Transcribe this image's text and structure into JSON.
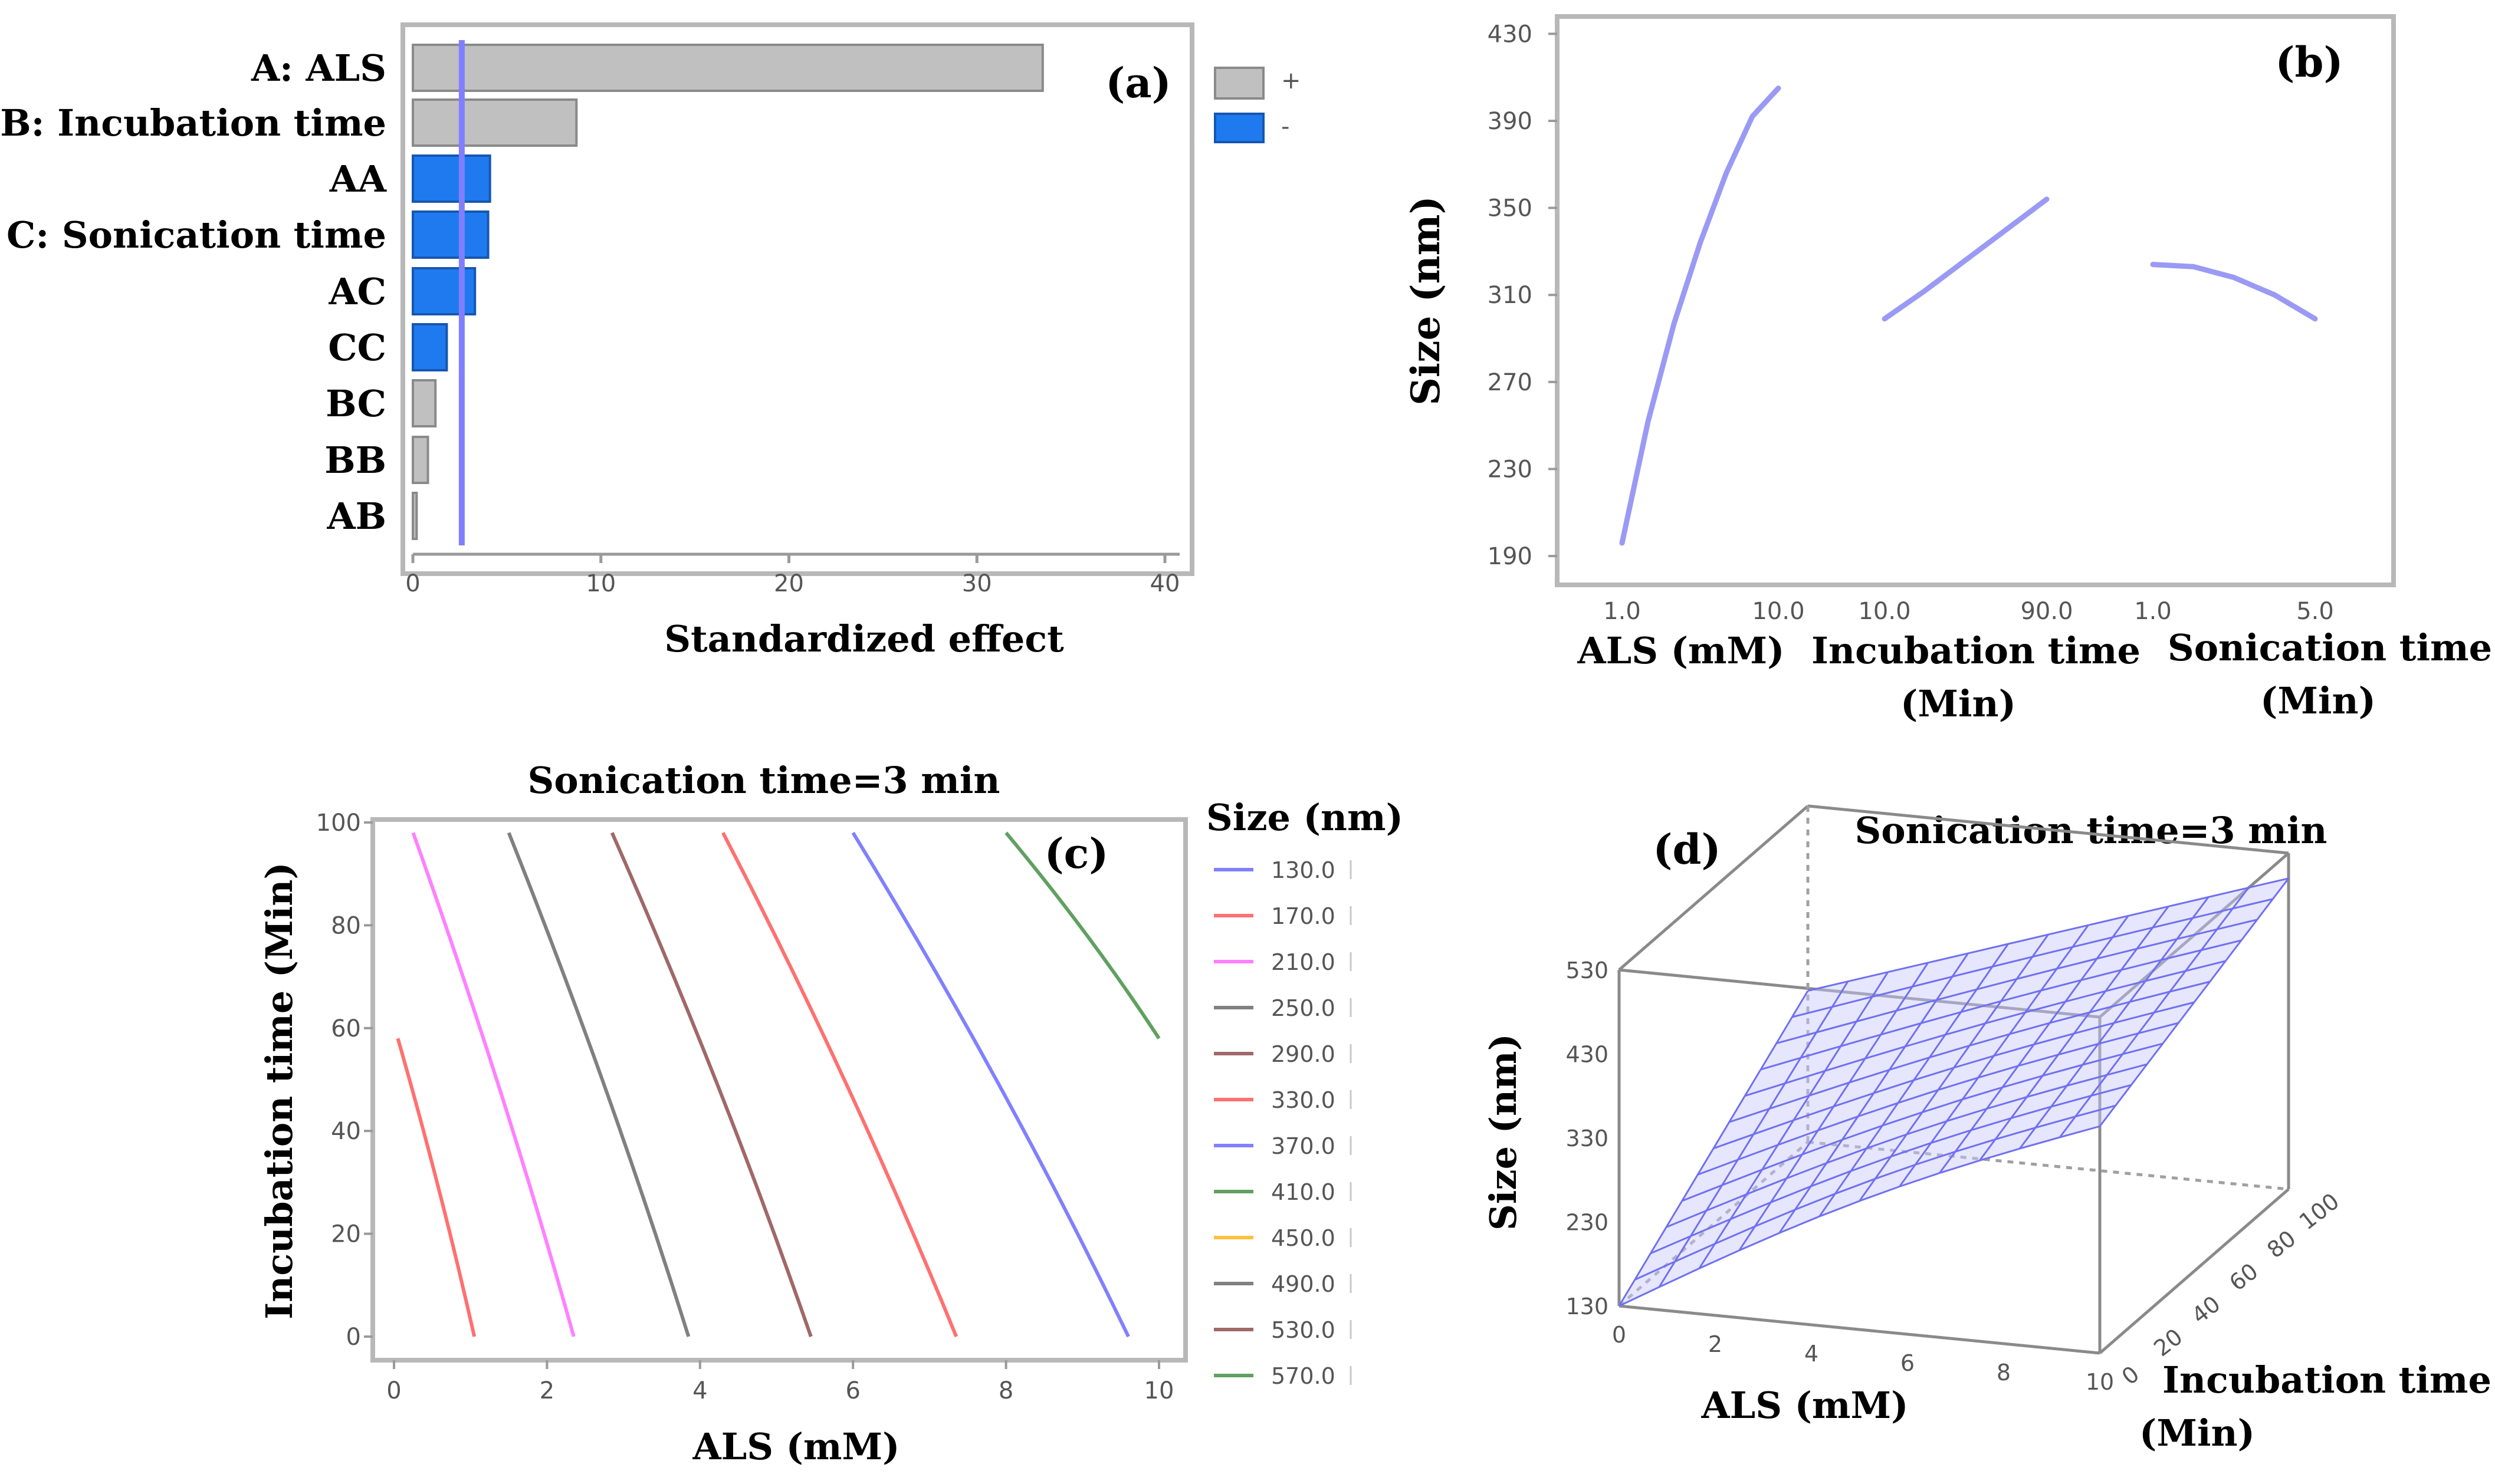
{
  "chart_data": [
    {
      "id": "a",
      "type": "bar",
      "panel_label": "(a)",
      "orientation": "horizontal",
      "categories": [
        "A: ALS",
        "B: Incubation time",
        "AA",
        "C: Sonication time",
        "AC",
        "CC",
        "BC",
        "BB",
        "AB"
      ],
      "values": [
        33.5,
        8.7,
        4.1,
        4.0,
        3.3,
        1.8,
        1.2,
        0.8,
        0.2
      ],
      "signs": [
        "+",
        "+",
        "-",
        "-",
        "-",
        "-",
        "+",
        "+",
        "+"
      ],
      "xlabel": "Standardized effect",
      "xlim": [
        0,
        40
      ],
      "xticks": [
        0,
        10,
        20,
        30,
        40
      ],
      "reference_line": 2.6,
      "legend": [
        {
          "label": "+",
          "color": "#c0c0c0"
        },
        {
          "label": "-",
          "color": "#1f7af0"
        }
      ],
      "colors": {
        "positive": "#c0c0c0",
        "negative": "#1f7af0",
        "reference": "#7f7fff"
      }
    },
    {
      "id": "b",
      "type": "line",
      "panel_label": "(b)",
      "ylabel": "Size (nm)",
      "ylim": [
        180,
        432
      ],
      "yticks": [
        190,
        230,
        270,
        310,
        350,
        390,
        430
      ],
      "color": "#9a9af5",
      "segments": [
        {
          "label": "ALS (mM)",
          "x_low": "1.0",
          "x_high": "10.0",
          "y": [
            196,
            252,
            297,
            334,
            366,
            392,
            405
          ]
        },
        {
          "label": "Incubation time (Min)",
          "label_lines": [
            "Incubation time",
            "(Min)"
          ],
          "x_low": "10.0",
          "x_high": "90.0",
          "y": [
            299,
            312,
            326,
            340,
            354
          ]
        },
        {
          "label": "Sonication time (Min)",
          "label_lines": [
            "Sonication time",
            "(Min)"
          ],
          "x_low": "1.0",
          "x_high": "5.0",
          "y": [
            324,
            323,
            318,
            310,
            299
          ]
        }
      ]
    },
    {
      "id": "c",
      "type": "contour",
      "panel_label": "(c)",
      "title": "Sonication time=3 min",
      "xlabel": "ALS (mM)",
      "ylabel": "Incubation time (Min)",
      "xlim": [
        0,
        10
      ],
      "ylim": [
        0,
        100
      ],
      "xticks": [
        0,
        2,
        4,
        6,
        8,
        10
      ],
      "yticks": [
        0,
        20,
        40,
        60,
        80,
        100
      ],
      "legend_title": "Size (nm)",
      "levels": [
        {
          "value": "130.0",
          "color": "#8080ff"
        },
        {
          "value": "170.0",
          "color": "#ff7070"
        },
        {
          "value": "210.0",
          "color": "#ff80ff"
        },
        {
          "value": "250.0",
          "color": "#808080"
        },
        {
          "value": "290.0",
          "color": "#a06868"
        },
        {
          "value": "330.0",
          "color": "#ff7070"
        },
        {
          "value": "370.0",
          "color": "#8080ff"
        },
        {
          "value": "410.0",
          "color": "#60a060"
        },
        {
          "value": "450.0",
          "color": "#ffc040"
        },
        {
          "value": "490.0",
          "color": "#808080"
        },
        {
          "value": "530.0",
          "color": "#a06868"
        },
        {
          "value": "570.0",
          "color": "#60a060"
        }
      ],
      "contours": [
        {
          "level": "170.0",
          "x_at_y0": 1.05,
          "x_at_top": 0.05,
          "y_top": 58
        },
        {
          "level": "210.0",
          "x_at_y0": 2.35,
          "x_at_top": 0.25,
          "y_top": 98
        },
        {
          "level": "250.0",
          "x_at_y0": 3.85,
          "x_at_top": 1.5,
          "y_top": 98
        },
        {
          "level": "290.0",
          "x_at_y0": 5.45,
          "x_at_top": 2.85,
          "y_top": 98
        },
        {
          "level": "330.0",
          "x_at_y0": 7.35,
          "x_at_top": 4.3,
          "y_top": 98
        },
        {
          "level": "370.0",
          "x_at_y0": 9.6,
          "x_at_top": 6.0,
          "y_top": 98
        },
        {
          "level": "410.0",
          "x_at_y0": 10.0,
          "x_at_top": 8.0,
          "y_top": 98,
          "y_bottom": 58
        }
      ]
    },
    {
      "id": "d",
      "type": "surface",
      "panel_label": "(d)",
      "title": "Sonication time=3 min",
      "xlabel": "ALS (mM)",
      "ylabel": "Incubation time (Min)",
      "ylabel_lines": [
        "Incubation time",
        "(Min)"
      ],
      "zlabel": "Size (nm)",
      "xlim": [
        0,
        10
      ],
      "ylim": [
        0,
        100
      ],
      "zlim": [
        130,
        530
      ],
      "xticks": [
        0,
        2,
        4,
        6,
        8,
        10
      ],
      "yticks": [
        0,
        20,
        40,
        60,
        80,
        100
      ],
      "zticks": [
        130,
        230,
        330,
        430,
        530
      ],
      "color": "#7070f0",
      "corner_values": {
        "x0y0": 130,
        "x10y0": 400,
        "x0y100": 310,
        "x10y100": 500
      }
    }
  ]
}
